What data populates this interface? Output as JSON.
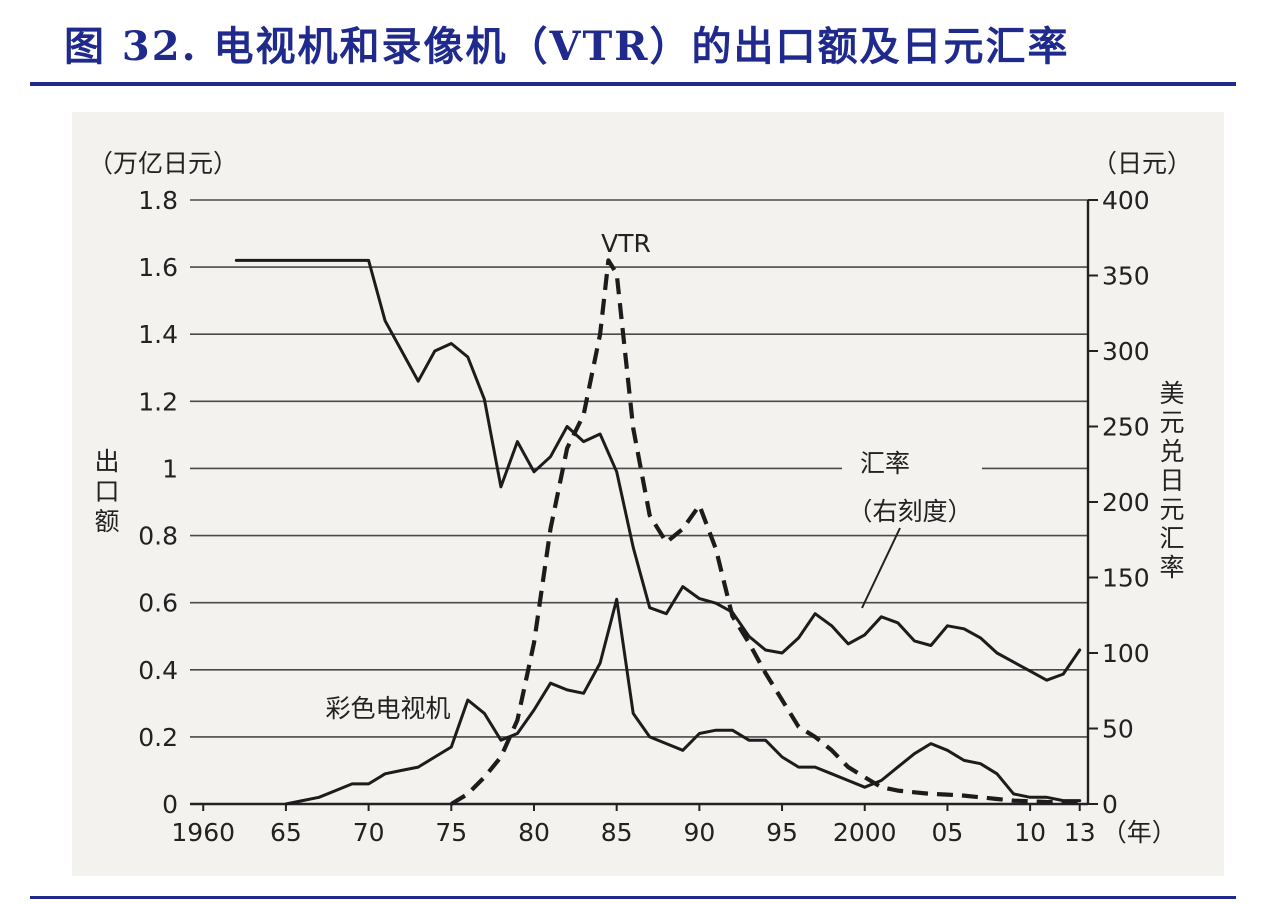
{
  "page": {
    "title": "图 32. 电视机和录像机（VTR）的出口额及日元汇率"
  },
  "chart_data": {
    "type": "line",
    "left_unit": "（万亿日元）",
    "right_unit": "（日元）",
    "left_axis_label": "出口额",
    "right_axis_label": "美元兑日元汇率",
    "x_unit": "（年）",
    "x_ticks": [
      {
        "year": 1960,
        "label": "1960"
      },
      {
        "year": 1965,
        "label": "65"
      },
      {
        "year": 1970,
        "label": "70"
      },
      {
        "year": 1975,
        "label": "75"
      },
      {
        "year": 1980,
        "label": "80"
      },
      {
        "year": 1985,
        "label": "85"
      },
      {
        "year": 1990,
        "label": "90"
      },
      {
        "year": 1995,
        "label": "95"
      },
      {
        "year": 2000,
        "label": "2000"
      },
      {
        "year": 2005,
        "label": "05"
      },
      {
        "year": 2010,
        "label": "10"
      },
      {
        "year": 2013,
        "label": "13"
      }
    ],
    "xlim": [
      1959.2,
      2013.5
    ],
    "ylim_left": [
      0,
      1.8
    ],
    "ylim_right": [
      0,
      400
    ],
    "left_ticks": [
      "0",
      "0.2",
      "0.4",
      "0.6",
      "0.8",
      "1",
      "1.2",
      "1.4",
      "1.6",
      "1.8"
    ],
    "right_ticks": [
      "0",
      "50",
      "100",
      "150",
      "200",
      "250",
      "300",
      "350",
      "400"
    ],
    "grid": true,
    "series": [
      {
        "name": "彩色电视机",
        "axis": "left",
        "style": "solid",
        "x": [
          1965,
          1966,
          1967,
          1968,
          1969,
          1970,
          1971,
          1972,
          1973,
          1974,
          1975,
          1976,
          1977,
          1978,
          1979,
          1980,
          1981,
          1982,
          1983,
          1984,
          1985,
          1986,
          1987,
          1988,
          1989,
          1990,
          1991,
          1992,
          1993,
          1994,
          1995,
          1996,
          1997,
          1998,
          1999,
          2000,
          2001,
          2002,
          2003,
          2004,
          2005,
          2006,
          2007,
          2008,
          2009,
          2010,
          2011,
          2012,
          2013
        ],
        "y": [
          0.0,
          0.01,
          0.02,
          0.04,
          0.06,
          0.06,
          0.09,
          0.1,
          0.11,
          0.14,
          0.17,
          0.31,
          0.27,
          0.19,
          0.21,
          0.28,
          0.36,
          0.34,
          0.33,
          0.42,
          0.61,
          0.27,
          0.2,
          0.18,
          0.16,
          0.21,
          0.22,
          0.22,
          0.19,
          0.19,
          0.14,
          0.11,
          0.11,
          0.09,
          0.07,
          0.05,
          0.07,
          0.11,
          0.15,
          0.18,
          0.16,
          0.13,
          0.12,
          0.09,
          0.03,
          0.02,
          0.02,
          0.01,
          0.01
        ]
      },
      {
        "name": "VTR",
        "axis": "left",
        "style": "dashed",
        "x": [
          1975,
          1976,
          1977,
          1978,
          1979,
          1980,
          1981,
          1982,
          1983,
          1984,
          1984.5,
          1985,
          1986,
          1987,
          1988,
          1989,
          1990,
          1991,
          1992,
          1993,
          1994,
          1995,
          1996,
          1997,
          1998,
          1999,
          2000,
          2001,
          2002,
          2003,
          2004,
          2005,
          2006,
          2007,
          2008,
          2009,
          2010,
          2011,
          2012,
          2013
        ],
        "y": [
          0.0,
          0.03,
          0.08,
          0.14,
          0.25,
          0.48,
          0.82,
          1.06,
          1.16,
          1.4,
          1.62,
          1.58,
          1.12,
          0.86,
          0.78,
          0.82,
          0.89,
          0.76,
          0.56,
          0.48,
          0.39,
          0.31,
          0.23,
          0.2,
          0.16,
          0.11,
          0.08,
          0.05,
          0.04,
          0.035,
          0.03,
          0.028,
          0.025,
          0.02,
          0.015,
          0.01,
          0.008,
          0.006,
          0.005,
          0.005
        ]
      },
      {
        "name": "汇率",
        "note": "（右刻度）",
        "axis": "right",
        "style": "solid",
        "x": [
          1962,
          1963,
          1964,
          1965,
          1966,
          1967,
          1968,
          1969,
          1970,
          1971,
          1972,
          1973,
          1974,
          1975,
          1976,
          1977,
          1978,
          1979,
          1980,
          1981,
          1982,
          1983,
          1984,
          1985,
          1986,
          1987,
          1988,
          1989,
          1990,
          1991,
          1992,
          1993,
          1994,
          1995,
          1996,
          1997,
          1998,
          1999,
          2000,
          2001,
          2002,
          2003,
          2004,
          2005,
          2006,
          2007,
          2008,
          2009,
          2010,
          2011,
          2012,
          2013
        ],
        "y": [
          360,
          360,
          360,
          360,
          360,
          360,
          360,
          360,
          360,
          320,
          300,
          280,
          300,
          305,
          296,
          268,
          210,
          240,
          220,
          230,
          250,
          240,
          245,
          220,
          170,
          130,
          126,
          144,
          136,
          133,
          127,
          111,
          102,
          100,
          110,
          126,
          118,
          106,
          112,
          124,
          120,
          108,
          105,
          118,
          116,
          110,
          100,
          94,
          88,
          82,
          86,
          102
        ]
      }
    ],
    "annotations": [
      {
        "text": "VTR"
      },
      {
        "text": "汇率"
      },
      {
        "text": "（右刻度）"
      },
      {
        "text": "彩色电视机"
      }
    ]
  }
}
